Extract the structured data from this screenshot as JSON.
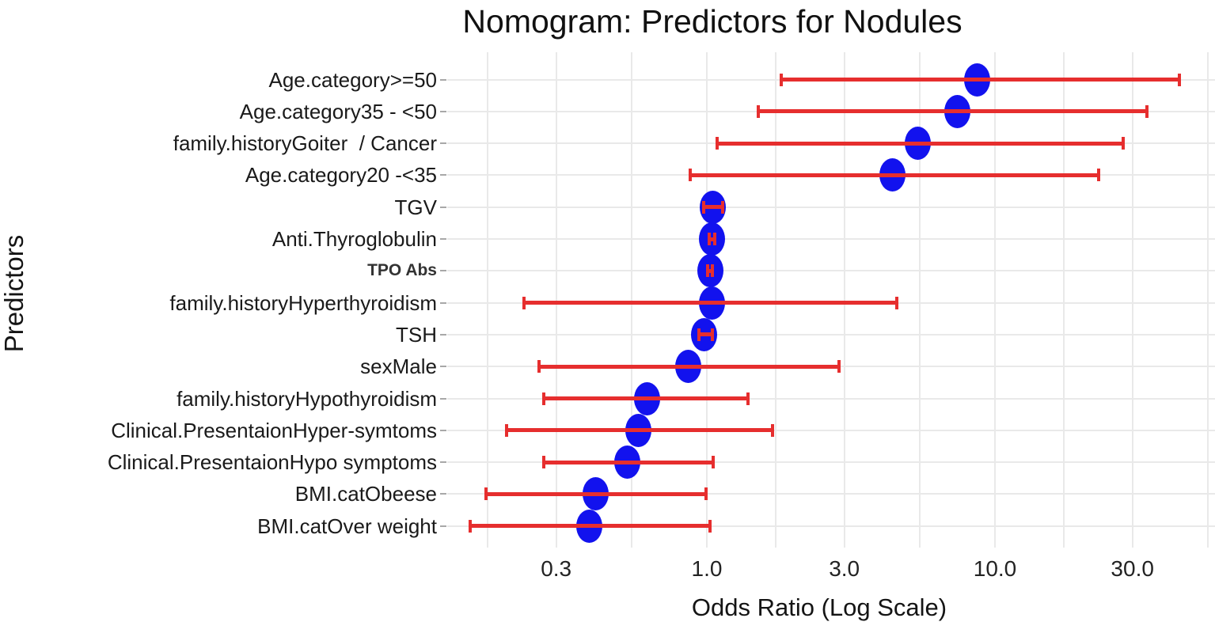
{
  "title": "Nomogram: Predictors for Nodules",
  "x_axis": {
    "label": "Odds Ratio (Log Scale)",
    "tick_labels": [
      "0.3",
      "1.0",
      "3.0",
      "10.0",
      "30.0"
    ],
    "tick_values": [
      0.3,
      1.0,
      3.0,
      10.0,
      30.0
    ]
  },
  "y_axis": {
    "label": "Predictors"
  },
  "colors": {
    "point": "#1212ee",
    "errorbar": "#e62e2e",
    "gridline": "#e9e9e9",
    "background": "#ffffff",
    "text": "#1a1a1a"
  },
  "chart_data": {
    "type": "scatter",
    "subtype": "forest-plot",
    "orientation": "horizontal",
    "x_scale": "log10",
    "title": "Nomogram: Predictors for Nodules",
    "xlabel": "Odds Ratio (Log Scale)",
    "ylabel": "Predictors",
    "xlim": [
      0.13,
      58
    ],
    "grid": true,
    "minor_gridline_values": [
      0.173,
      0.548,
      1.73,
      5.48,
      17.3,
      54.8
    ],
    "legend": "none",
    "rows": [
      {
        "label": "Age.category>=50",
        "or": 8.7,
        "ci_low": 1.8,
        "ci_high": 44
      },
      {
        "label": "Age.category35 - <50",
        "or": 7.4,
        "ci_low": 1.5,
        "ci_high": 34
      },
      {
        "label": "family.historyGoiter  / Cancer",
        "or": 5.4,
        "ci_low": 1.08,
        "ci_high": 28
      },
      {
        "label": "Age.category20 -<35",
        "or": 4.4,
        "ci_low": 0.87,
        "ci_high": 23
      },
      {
        "label": "TGV",
        "or": 1.05,
        "ci_low": 0.97,
        "ci_high": 1.14
      },
      {
        "label": "Anti.Thyroglobulin",
        "or": 1.04,
        "ci_low": 1.01,
        "ci_high": 1.07
      },
      {
        "label": "TPO Abs",
        "or": 1.03,
        "ci_low": 1.0,
        "ci_high": 1.05,
        "small_bold": true
      },
      {
        "label": "family.historyHyperthyroidism",
        "or": 1.04,
        "ci_low": 0.23,
        "ci_high": 4.6
      },
      {
        "label": "TSH",
        "or": 0.98,
        "ci_low": 0.93,
        "ci_high": 1.05
      },
      {
        "label": "sexMale",
        "or": 0.86,
        "ci_low": 0.26,
        "ci_high": 2.9
      },
      {
        "label": "family.historyHypothyroidism",
        "or": 0.62,
        "ci_low": 0.27,
        "ci_high": 1.4
      },
      {
        "label": "Clinical.PresentaionHyper-symtoms",
        "or": 0.58,
        "ci_low": 0.2,
        "ci_high": 1.7
      },
      {
        "label": "Clinical.PresentaionHypo symptoms",
        "or": 0.53,
        "ci_low": 0.27,
        "ci_high": 1.06
      },
      {
        "label": "BMI.catObeese",
        "or": 0.41,
        "ci_low": 0.17,
        "ci_high": 1.0
      },
      {
        "label": "BMI.catOver weight",
        "or": 0.39,
        "ci_low": 0.15,
        "ci_high": 1.03
      }
    ]
  }
}
